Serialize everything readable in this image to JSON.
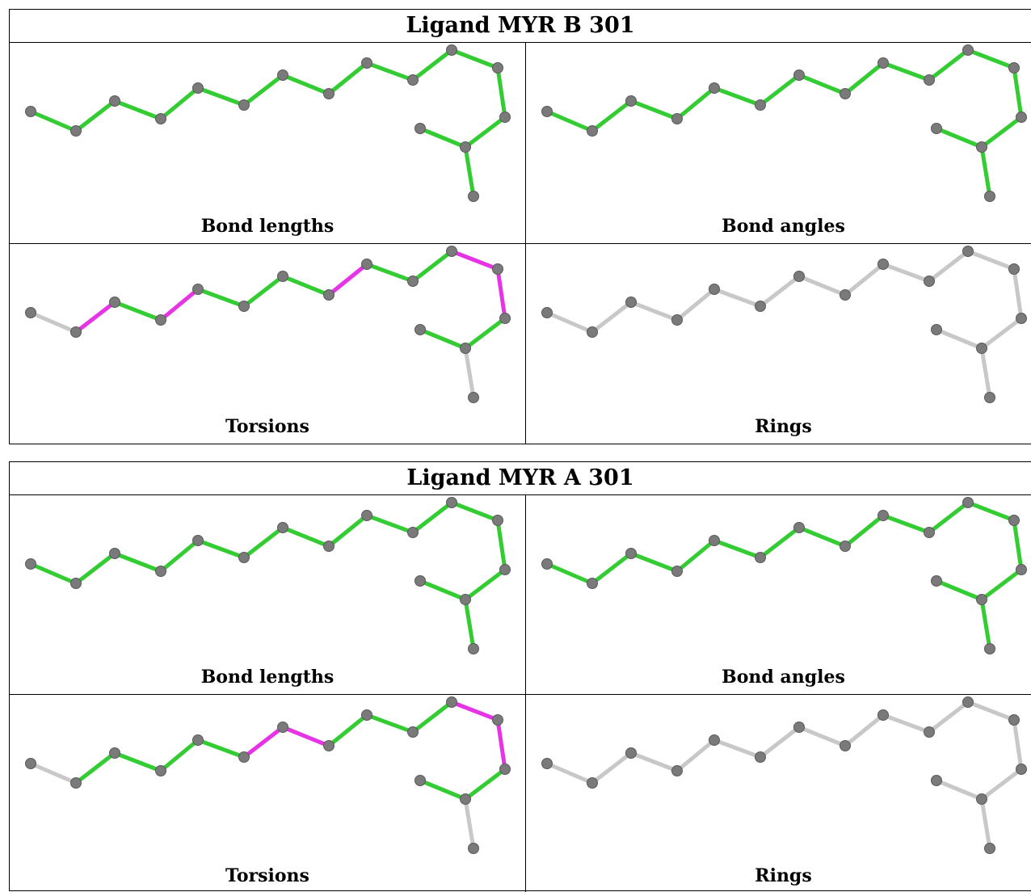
{
  "colors": {
    "pass": "#33cc33",
    "outlier": "#e633e6",
    "neutral": "#c8c8c8",
    "atom": "#7a7a7a"
  },
  "ligands": [
    {
      "title": "Ligand MYR B 301",
      "panels": [
        {
          "label": "Bond lengths",
          "bonds": [
            "pass",
            "pass",
            "pass",
            "pass",
            "pass",
            "pass",
            "pass",
            "pass",
            "pass",
            "pass",
            "pass",
            "pass",
            "pass",
            "pass",
            "pass",
            "pass"
          ]
        },
        {
          "label": "Bond angles",
          "bonds": [
            "pass",
            "pass",
            "pass",
            "pass",
            "pass",
            "pass",
            "pass",
            "pass",
            "pass",
            "pass",
            "pass",
            "pass",
            "pass",
            "pass",
            "pass",
            "pass"
          ]
        },
        {
          "label": "Torsions",
          "bonds": [
            "neutral",
            "outlier",
            "pass",
            "outlier",
            "pass",
            "pass",
            "pass",
            "outlier",
            "pass",
            "pass",
            "outlier",
            "outlier",
            "pass",
            "pass",
            "neutral",
            "neutral"
          ]
        },
        {
          "label": "Rings",
          "bonds": [
            "neutral",
            "neutral",
            "neutral",
            "neutral",
            "neutral",
            "neutral",
            "neutral",
            "neutral",
            "neutral",
            "neutral",
            "neutral",
            "neutral",
            "neutral",
            "neutral",
            "neutral",
            "neutral"
          ]
        }
      ]
    },
    {
      "title": "Ligand MYR A 301",
      "panels": [
        {
          "label": "Bond lengths",
          "bonds": [
            "pass",
            "pass",
            "pass",
            "pass",
            "pass",
            "pass",
            "pass",
            "pass",
            "pass",
            "pass",
            "pass",
            "pass",
            "pass",
            "pass",
            "pass",
            "pass"
          ]
        },
        {
          "label": "Bond angles",
          "bonds": [
            "pass",
            "pass",
            "pass",
            "pass",
            "pass",
            "pass",
            "pass",
            "pass",
            "pass",
            "pass",
            "pass",
            "pass",
            "pass",
            "pass",
            "pass",
            "pass"
          ]
        },
        {
          "label": "Torsions",
          "bonds": [
            "neutral",
            "pass",
            "pass",
            "pass",
            "pass",
            "outlier",
            "outlier",
            "pass",
            "pass",
            "pass",
            "outlier",
            "outlier",
            "pass",
            "pass",
            "neutral",
            "neutral"
          ]
        },
        {
          "label": "Rings",
          "bonds": [
            "neutral",
            "neutral",
            "neutral",
            "neutral",
            "neutral",
            "neutral",
            "neutral",
            "neutral",
            "neutral",
            "neutral",
            "neutral",
            "neutral",
            "neutral",
            "neutral",
            "neutral",
            "neutral"
          ]
        }
      ]
    }
  ]
}
